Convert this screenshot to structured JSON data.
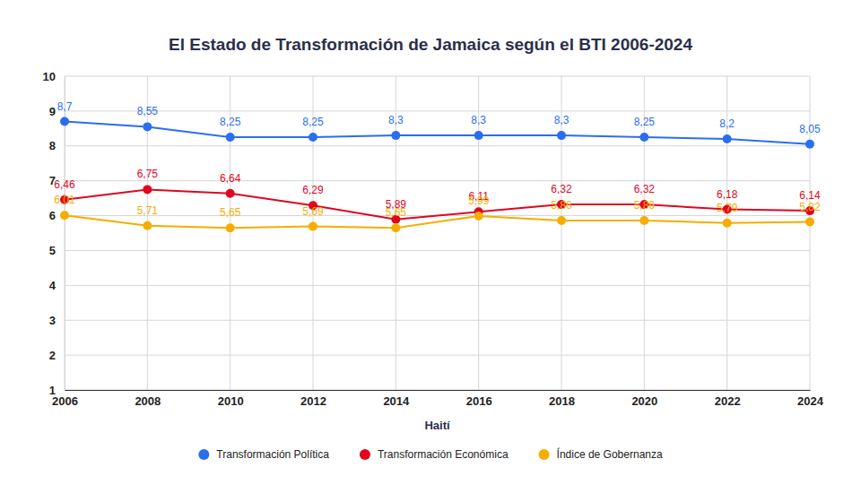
{
  "chart_data": {
    "type": "line",
    "title": "El Estado de Transformación de Jamaica según el BTI 2006-2024",
    "x_label": "Haití",
    "x": [
      2006,
      2008,
      2010,
      2012,
      2014,
      2016,
      2018,
      2020,
      2022,
      2024
    ],
    "xlim": [
      2006,
      2024
    ],
    "xticks": [
      2006,
      2008,
      2010,
      2012,
      2014,
      2016,
      2018,
      2020,
      2022,
      2024
    ],
    "ylim": [
      1,
      10
    ],
    "yticks": [
      1,
      2,
      3,
      4,
      5,
      6,
      7,
      8,
      9,
      10
    ],
    "grid": true,
    "legend": "bottom",
    "data_labels": true,
    "marker": "circle",
    "line_style": "solid",
    "series": [
      {
        "name": "Transformación Política",
        "color": "#2a6ef0",
        "values": [
          8.7,
          8.55,
          8.25,
          8.25,
          8.3,
          8.3,
          8.3,
          8.25,
          8.2,
          8.05
        ],
        "value_labels": [
          "8,7",
          "8,55",
          "8,25",
          "8,25",
          "8,3",
          "8,3",
          "8,3",
          "8,25",
          "8,2",
          "8,05"
        ]
      },
      {
        "name": "Transformación Económica",
        "color": "#e0061f",
        "values": [
          6.46,
          6.75,
          6.64,
          6.29,
          5.89,
          6.11,
          6.32,
          6.32,
          6.18,
          6.14
        ],
        "value_labels": [
          "6,46",
          "6,75",
          "6,64",
          "6,29",
          "5,89",
          "6,11",
          "6,32",
          "6,32",
          "6,18",
          "6,14"
        ]
      },
      {
        "name": "Índice de Gobernanza",
        "color": "#f5ad00",
        "values": [
          6.01,
          5.71,
          5.65,
          5.69,
          5.65,
          5.99,
          5.86,
          5.86,
          5.79,
          5.82
        ],
        "value_labels": [
          "6,01",
          "5,71",
          "5,65",
          "5,69",
          "5,65",
          "5,99",
          "5,86",
          "5,86",
          "5,79",
          "5,82"
        ]
      }
    ]
  }
}
